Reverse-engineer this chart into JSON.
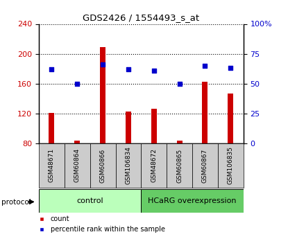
{
  "title": "GDS2426 / 1554493_s_at",
  "samples": [
    "GSM48671",
    "GSM60864",
    "GSM60866",
    "GSM106834",
    "GSM48672",
    "GSM60865",
    "GSM60867",
    "GSM106835"
  ],
  "count_values": [
    121,
    84,
    209,
    123,
    126,
    84,
    163,
    147
  ],
  "percentile_values": [
    62,
    50,
    66,
    62,
    61,
    50,
    65,
    63
  ],
  "control_samples": 4,
  "hcarg_samples": 4,
  "left_ylim": [
    80,
    240
  ],
  "left_yticks": [
    80,
    120,
    160,
    200,
    240
  ],
  "right_ylim": [
    0,
    100
  ],
  "right_yticks": [
    0,
    25,
    50,
    75,
    100
  ],
  "bar_color": "#cc0000",
  "dot_color": "#0000cc",
  "control_label": "control",
  "hcarg_label": "HCaRG overexpression",
  "protocol_label": "protocol",
  "legend_count": "count",
  "legend_percentile": "percentile rank within the sample",
  "control_bg": "#bbffbb",
  "hcarg_bg": "#66cc66",
  "label_area_bg": "#cccccc",
  "ylabel_left_color": "#cc0000",
  "ylabel_right_color": "#0000cc"
}
